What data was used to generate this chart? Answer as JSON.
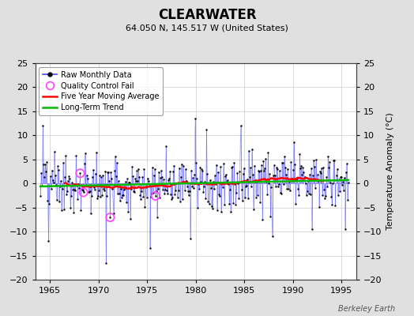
{
  "title": "CLEARWATER",
  "subtitle": "64.050 N, 145.517 W (United States)",
  "ylabel_right": "Temperature Anomaly (°C)",
  "watermark": "Berkeley Earth",
  "xlim": [
    1963.5,
    1996.5
  ],
  "ylim": [
    -20,
    25
  ],
  "yticks": [
    -20,
    -15,
    -10,
    -5,
    0,
    5,
    10,
    15,
    20,
    25
  ],
  "xticks": [
    1965,
    1970,
    1975,
    1980,
    1985,
    1990,
    1995
  ],
  "bg_color": "#e0e0e0",
  "plot_bg_color": "#ffffff",
  "raw_line_color": "#4444ff",
  "raw_dot_color": "#000000",
  "qc_fail_color": "#ff44ff",
  "moving_avg_color": "#ff0000",
  "trend_color": "#00bb00",
  "title_fontsize": 12,
  "subtitle_fontsize": 8,
  "tick_fontsize": 8,
  "legend_fontsize": 7,
  "ylabel_fontsize": 8,
  "watermark_fontsize": 7
}
